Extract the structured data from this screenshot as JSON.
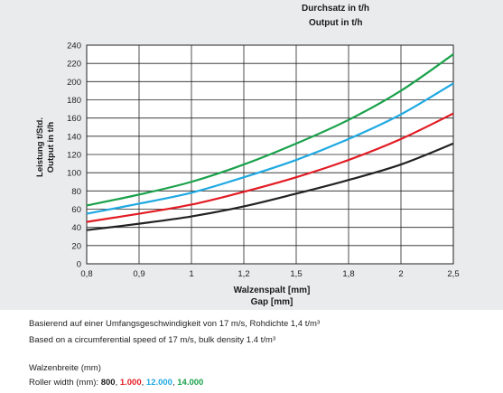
{
  "header": {
    "line1": "Durchsatz in t/h",
    "line2": "Output in t/h"
  },
  "notes": {
    "basis_de": "Basierend auf einer Umfangsgeschwindigkeit von 17 m/s, Rohdichte 1,4 t/m³",
    "basis_en": "Based on a circumferential speed of 17 m/s, bulk density 1.4 t/m³",
    "width_label_de": "Walzenbreite (mm)",
    "width_label_en": "Roller width (mm): ",
    "sep": ", "
  },
  "colors": {
    "panel": "#e9ebec",
    "plot_bg": "#ffffff",
    "grid": "#222222",
    "s800": "#222222",
    "s1000": "#e21b23",
    "s12000": "#1fa9e1",
    "s14000": "#1aa14b"
  },
  "chart_data": {
    "type": "line",
    "title": "",
    "xlabel": "Walzenspalt [mm]",
    "xlabel2": "Gap [mm]",
    "ylabel": "Leistung t/Std.",
    "ylabel2": "Output in t/h",
    "x_ticks": [
      "0,8",
      "0,9",
      "1",
      "1,2",
      "1,5",
      "1,8",
      "2",
      "2,5"
    ],
    "y_ticks": [
      "0",
      "20",
      "40",
      "60",
      "80",
      "100",
      "120",
      "140",
      "160",
      "180",
      "200",
      "220",
      "240"
    ],
    "ylim": [
      0,
      240
    ],
    "grid": true,
    "series": [
      {
        "name": "800",
        "color": "#222222",
        "values": [
          37,
          44,
          52,
          63,
          77,
          92,
          109,
          132
        ]
      },
      {
        "name": "1.000",
        "color": "#e21b23",
        "values": [
          46,
          55,
          65,
          79,
          95,
          114,
          137,
          165
        ]
      },
      {
        "name": "12.000",
        "color": "#1fa9e1",
        "values": [
          55,
          66,
          78,
          95,
          114,
          137,
          164,
          198
        ]
      },
      {
        "name": "14.000",
        "color": "#1aa14b",
        "values": [
          64,
          76,
          90,
          109,
          132,
          158,
          190,
          230
        ]
      }
    ]
  }
}
